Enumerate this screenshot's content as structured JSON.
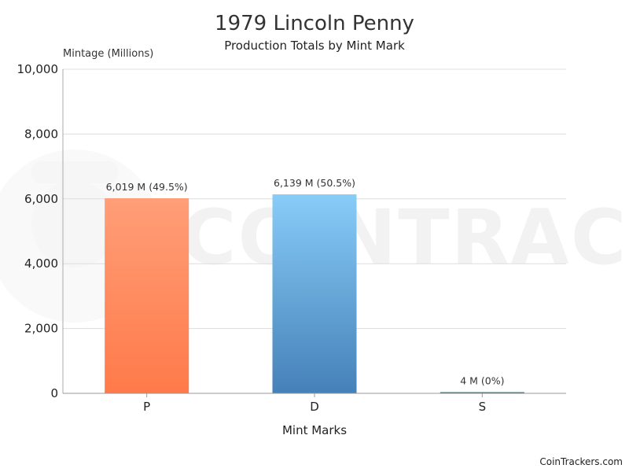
{
  "credit": "CoinTrackers.com",
  "watermark": {
    "text": "COINTRACKERS",
    "color": "#f1f1f1"
  },
  "chart_data": {
    "type": "bar",
    "title": "1979 Lincoln Penny",
    "subtitle": "Production Totals by Mint Mark",
    "xlabel": "Mint Marks",
    "ylabel": "Mintage (Millions)",
    "ylim": [
      0,
      10000
    ],
    "yticks": [
      0,
      2000,
      4000,
      6000,
      8000,
      10000
    ],
    "ytick_labels": [
      "0",
      "2,000",
      "4,000",
      "6,000",
      "8,000",
      "10,000"
    ],
    "grid": true,
    "categories": [
      "P",
      "D",
      "S"
    ],
    "values": [
      6019,
      6139,
      4
    ],
    "data_labels": [
      "6,019 M (49.5%)",
      "6,139 M (50.5%)",
      "4 M (0%)"
    ],
    "colors": [
      {
        "top": "#ff9e78",
        "bottom": "#ff7a4a"
      },
      {
        "top": "#88ccf8",
        "bottom": "#4581b8"
      },
      {
        "top": "#3d6f7a",
        "bottom": "#2f5e69"
      }
    ]
  }
}
